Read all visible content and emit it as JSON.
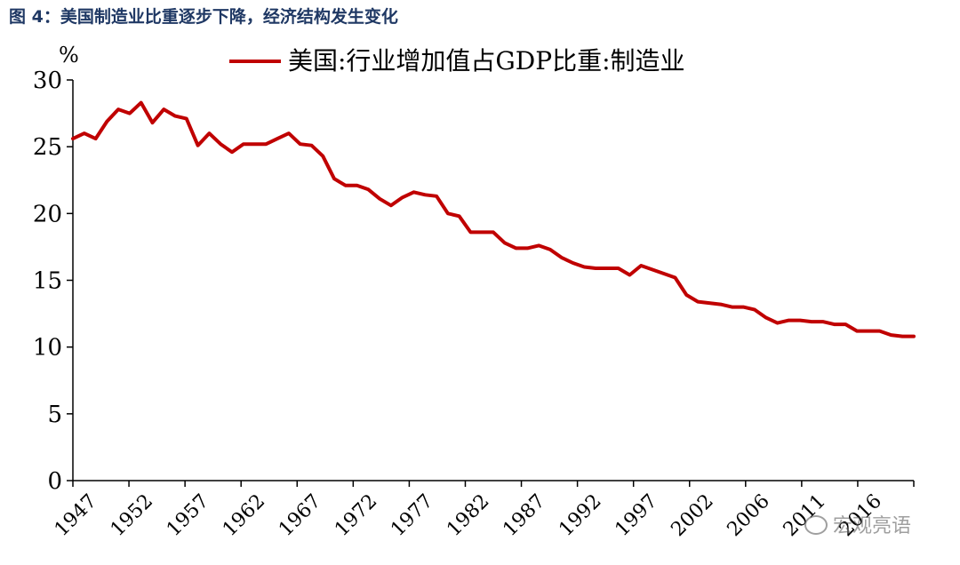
{
  "figure_title": "图 4：美国制造业比重逐步下降，经济结构发生变化",
  "watermark_text": "宏观亮语",
  "chart_data": {
    "type": "line",
    "unit_label": "%",
    "ylim": [
      0,
      30
    ],
    "yticks": [
      0,
      5,
      10,
      15,
      20,
      25,
      30
    ],
    "xlim": [
      1947,
      2021
    ],
    "xtick_labels": [
      "1947",
      "1952",
      "1957",
      "1962",
      "1967",
      "1972",
      "1977",
      "1982",
      "1987",
      "1992",
      "1997",
      "2002",
      "2006",
      "2011",
      "2016"
    ],
    "grid": false,
    "legend_position": "top",
    "line_color": "#c00000",
    "series": [
      {
        "name": "美国:行业增加值占GDP比重:制造业",
        "x": [
          1947,
          1948,
          1949,
          1950,
          1951,
          1952,
          1953,
          1954,
          1955,
          1956,
          1957,
          1958,
          1959,
          1960,
          1961,
          1962,
          1963,
          1964,
          1965,
          1966,
          1967,
          1968,
          1969,
          1970,
          1971,
          1972,
          1973,
          1974,
          1975,
          1976,
          1977,
          1978,
          1979,
          1980,
          1981,
          1982,
          1983,
          1984,
          1985,
          1986,
          1987,
          1988,
          1989,
          1990,
          1991,
          1992,
          1993,
          1994,
          1995,
          1996,
          1997,
          1998,
          1999,
          2000,
          2001,
          2002,
          2003,
          2004,
          2005,
          2006,
          2007,
          2008,
          2009,
          2010,
          2011,
          2012,
          2013,
          2014,
          2015,
          2016,
          2017,
          2018,
          2019,
          2020,
          2021
        ],
        "values": [
          25.6,
          26.0,
          25.6,
          26.9,
          27.8,
          27.5,
          28.3,
          26.8,
          27.8,
          27.3,
          27.1,
          25.1,
          26.0,
          25.2,
          24.6,
          25.2,
          25.2,
          25.2,
          25.6,
          26.0,
          25.2,
          25.1,
          24.3,
          22.6,
          22.1,
          22.1,
          21.8,
          21.1,
          20.6,
          21.2,
          21.6,
          21.4,
          21.3,
          20.0,
          19.8,
          18.6,
          18.6,
          18.6,
          17.8,
          17.4,
          17.4,
          17.6,
          17.3,
          16.7,
          16.3,
          16.0,
          15.9,
          15.9,
          15.9,
          15.4,
          16.1,
          15.8,
          15.5,
          15.2,
          13.9,
          13.4,
          13.3,
          13.2,
          13.0,
          13.0,
          12.8,
          12.2,
          11.8,
          12.0,
          12.0,
          11.9,
          11.9,
          11.7,
          11.7,
          11.2,
          11.2,
          11.2,
          10.9,
          10.8,
          10.8
        ]
      }
    ]
  }
}
